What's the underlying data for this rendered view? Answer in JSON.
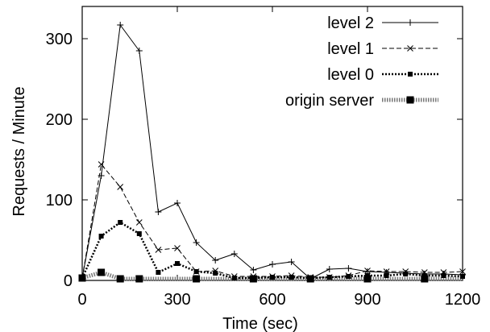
{
  "chart_data": {
    "type": "line",
    "title": "",
    "xlabel": "Time (sec)",
    "ylabel": "Requests / Minute",
    "xlim": [
      0,
      1200
    ],
    "ylim": [
      0,
      340
    ],
    "xticks": [
      0,
      300,
      600,
      900,
      1200
    ],
    "yticks": [
      0,
      100,
      200,
      300
    ],
    "grid": false,
    "legend_position": "top-right",
    "series": [
      {
        "name": "level 2",
        "style": "solid",
        "marker": "plus",
        "x": [
          0,
          60,
          120,
          180,
          240,
          300,
          360,
          420,
          480,
          540,
          600,
          660,
          720,
          780,
          840,
          900,
          960,
          1020,
          1080,
          1140,
          1200
        ],
        "y": [
          3,
          130,
          317,
          285,
          85,
          96,
          47,
          25,
          33,
          13,
          20,
          23,
          2,
          14,
          15,
          11,
          10,
          9,
          8,
          8,
          7
        ]
      },
      {
        "name": "level 1",
        "style": "dashed",
        "marker": "x",
        "x": [
          0,
          60,
          120,
          180,
          240,
          300,
          360,
          420,
          480,
          540,
          600,
          660,
          720,
          780,
          840,
          900,
          960,
          1020,
          1080,
          1140,
          1200
        ],
        "y": [
          3,
          144,
          116,
          72,
          38,
          40,
          11,
          12,
          5,
          5,
          5,
          6,
          4,
          4,
          6,
          12,
          11,
          11,
          10,
          10,
          11
        ]
      },
      {
        "name": "level 0",
        "style": "dotted",
        "marker": "square-small",
        "x": [
          0,
          60,
          120,
          180,
          240,
          300,
          360,
          420,
          480,
          540,
          600,
          660,
          720,
          780,
          840,
          900,
          960,
          1020,
          1080,
          1140,
          1200
        ],
        "y": [
          3,
          55,
          72,
          58,
          10,
          21,
          11,
          9,
          3,
          3,
          4,
          4,
          3,
          4,
          5,
          6,
          6,
          8,
          6,
          6,
          5
        ]
      },
      {
        "name": "origin server",
        "style": "thick-dotted",
        "marker": "square",
        "x": [
          0,
          60,
          120,
          180,
          240,
          300,
          360,
          420,
          480,
          540,
          600,
          660,
          720,
          780,
          840,
          900,
          960,
          1020,
          1080,
          1140,
          1200
        ],
        "y": [
          3,
          10,
          2,
          2,
          2,
          2,
          2,
          2,
          2,
          2,
          2,
          2,
          2,
          2,
          2,
          2,
          2,
          2,
          2,
          2,
          2
        ]
      }
    ]
  }
}
